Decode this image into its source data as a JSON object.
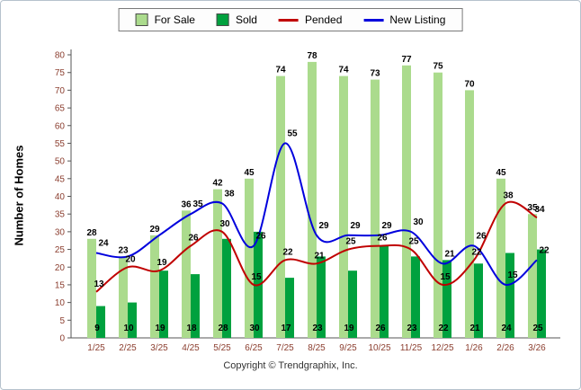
{
  "legend": {
    "items": [
      {
        "label": "For Sale",
        "swatch": "bar",
        "color": "#abdb8d"
      },
      {
        "label": "Sold",
        "swatch": "bar",
        "color": "#00a13e"
      },
      {
        "label": "Pended",
        "swatch": "line",
        "color": "#c00000"
      },
      {
        "label": "New Listing",
        "swatch": "line",
        "color": "#0000dd"
      }
    ]
  },
  "chart_data": {
    "type": "combo",
    "categories": [
      "1/25",
      "2/25",
      "3/25",
      "4/25",
      "5/25",
      "6/25",
      "7/25",
      "8/25",
      "9/25",
      "10/25",
      "11/25",
      "12/25",
      "1/26",
      "2/26",
      "3/26"
    ],
    "series": [
      {
        "name": "For Sale",
        "type": "bar",
        "color": "#abdb8d",
        "values": [
          28,
          23,
          29,
          36,
          42,
          45,
          74,
          78,
          74,
          73,
          77,
          75,
          70,
          45,
          35
        ]
      },
      {
        "name": "Sold",
        "type": "bar",
        "color": "#00a13e",
        "values": [
          9,
          10,
          19,
          18,
          28,
          30,
          17,
          23,
          19,
          26,
          23,
          22,
          21,
          24,
          25
        ]
      },
      {
        "name": "Pended",
        "type": "line",
        "color": "#c00000",
        "values": [
          13,
          20,
          19,
          26,
          30,
          15,
          22,
          21,
          25,
          26,
          25,
          15,
          22,
          38,
          34
        ]
      },
      {
        "name": "New Listing",
        "type": "line",
        "color": "#0000dd",
        "values": [
          24,
          23,
          29,
          35,
          38,
          26,
          55,
          29,
          29,
          29,
          30,
          21,
          26,
          15,
          22
        ]
      }
    ],
    "ylabel": "Number of Homes",
    "ylim": [
      0,
      80
    ],
    "ytick_step": 5,
    "grid": false,
    "legend_position": "top"
  },
  "footer": {
    "copyright": "Copyright © Trendgraphix, Inc."
  },
  "colors": {
    "axis_text": "#8b3e2f",
    "axis_line": "#555555",
    "data_label": "#000000"
  }
}
